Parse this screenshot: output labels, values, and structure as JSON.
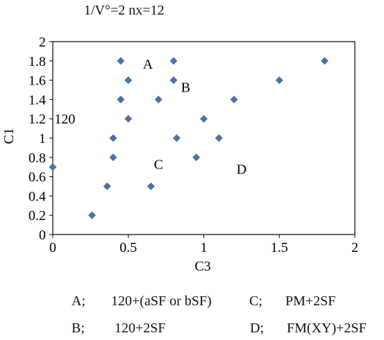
{
  "title": "1/V°=2   nx=12",
  "chart_data": {
    "type": "scatter",
    "xlabel": "C3",
    "ylabel": "C1",
    "xlim": [
      0,
      2
    ],
    "ylim": [
      0,
      2
    ],
    "xticks": [
      "0",
      "0.5",
      "1",
      "1.5",
      "2"
    ],
    "yticks": [
      "0",
      "0.2",
      "0.4",
      "0.6",
      "0.8",
      "1",
      "1.2",
      "1.4",
      "1.6",
      "1.8",
      "2"
    ],
    "grid": false,
    "marker_color": "#4a72b0",
    "points": [
      {
        "x": 0.0,
        "y": 0.7
      },
      {
        "x": 0.26,
        "y": 0.2
      },
      {
        "x": 0.36,
        "y": 0.5
      },
      {
        "x": 0.4,
        "y": 0.8
      },
      {
        "x": 0.4,
        "y": 1.0
      },
      {
        "x": 0.45,
        "y": 1.4
      },
      {
        "x": 0.45,
        "y": 1.8
      },
      {
        "x": 0.5,
        "y": 1.6
      },
      {
        "x": 0.5,
        "y": 1.2
      },
      {
        "x": 0.65,
        "y": 0.5
      },
      {
        "x": 0.7,
        "y": 1.4
      },
      {
        "x": 0.8,
        "y": 1.8
      },
      {
        "x": 0.8,
        "y": 1.6
      },
      {
        "x": 0.82,
        "y": 1.0
      },
      {
        "x": 0.95,
        "y": 0.8
      },
      {
        "x": 1.0,
        "y": 1.2
      },
      {
        "x": 1.1,
        "y": 1.0
      },
      {
        "x": 1.2,
        "y": 1.4
      },
      {
        "x": 1.5,
        "y": 1.6
      },
      {
        "x": 1.8,
        "y": 1.8
      }
    ],
    "annotations": [
      {
        "text": "A",
        "x": 0.63,
        "y": 1.77
      },
      {
        "text": "B",
        "x": 0.88,
        "y": 1.53
      },
      {
        "text": "120",
        "x": 0.08,
        "y": 1.2
      },
      {
        "text": "C",
        "x": 0.7,
        "y": 0.73
      },
      {
        "text": "D",
        "x": 1.25,
        "y": 0.68
      }
    ]
  },
  "legend": [
    {
      "key": "A;",
      "label": "120+(aSF or bSF)"
    },
    {
      "key": "C;",
      "label": "PM+2SF"
    },
    {
      "key": "B;",
      "label": "120+2SF"
    },
    {
      "key": "D;",
      "label": "FM(XY)+2SF"
    }
  ]
}
